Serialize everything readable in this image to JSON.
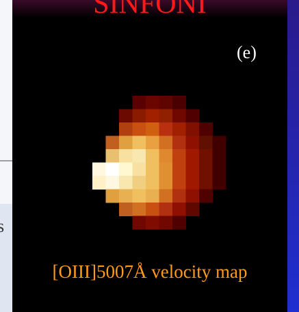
{
  "title": "SINFONI",
  "panel_label": "(e)",
  "caption": "[OIII]5007Å velocity map",
  "side_text": "s"
}
